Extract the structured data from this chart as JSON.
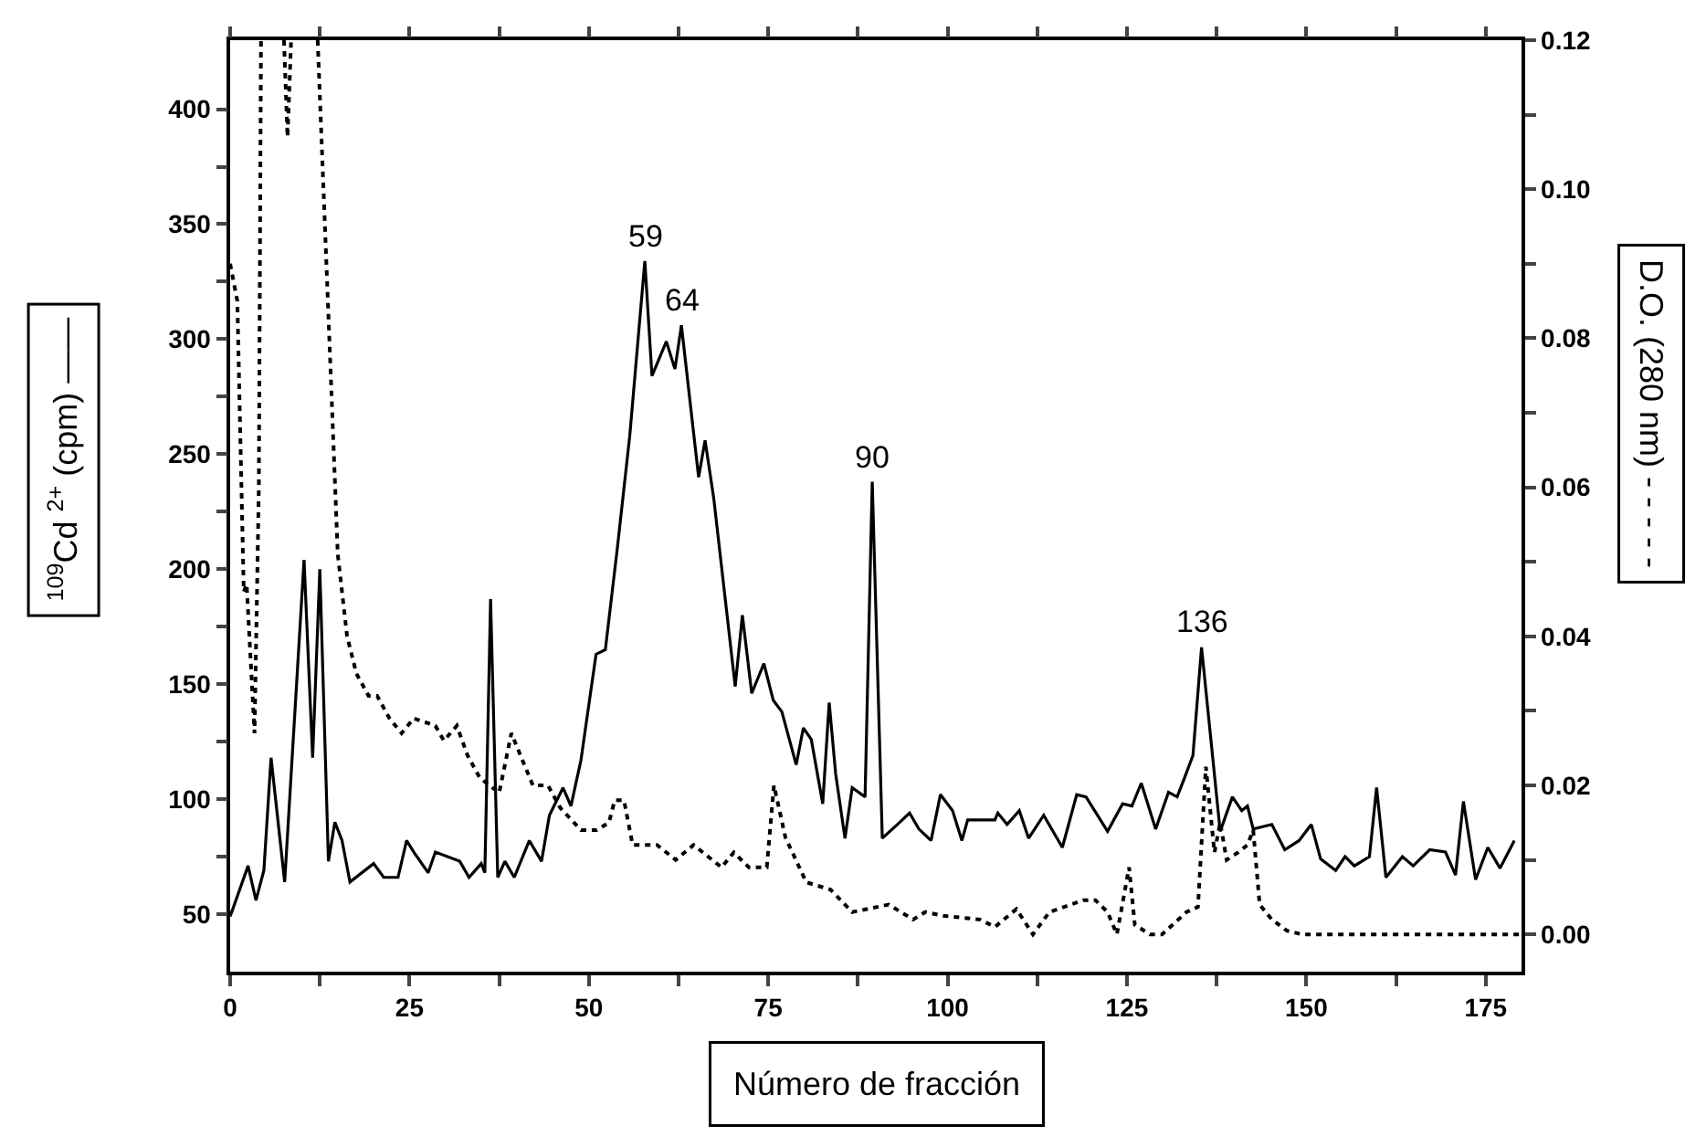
{
  "chart_data": {
    "type": "line",
    "xlabel": "Número de fracción",
    "ylabel": "$^{109}$Cd $^{2+}$ (cpm) ——",
    "y2label": "D.O. (280 nm) - - - - -",
    "xlim": [
      0,
      180
    ],
    "xticks": [
      0,
      {
        "value": 12.5,
        "label": null
      },
      25,
      {
        "value": 37.5,
        "label": null
      },
      50,
      {
        "value": 62.5,
        "label": null
      },
      75,
      {
        "value": 87.5,
        "label": null
      },
      100,
      {
        "value": 112.5,
        "label": null
      },
      125,
      {
        "value": 137.5,
        "label": null
      },
      150,
      {
        "value": 162.5,
        "label": null
      },
      175
    ],
    "ylim": [
      25,
      430
    ],
    "yticks": [
      50,
      {
        "value": 75,
        "label": null
      },
      100,
      {
        "value": 125,
        "label": null
      },
      150,
      {
        "value": 175,
        "label": null
      },
      200,
      {
        "value": 225,
        "label": null
      },
      250,
      {
        "value": 275,
        "label": null
      },
      300,
      {
        "value": 325,
        "label": null
      },
      350,
      {
        "value": 375,
        "label": null
      },
      400
    ],
    "y2lim": [
      -0.005,
      0.12
    ],
    "y2ticks": [
      {
        "value": 0,
        "label": "0.00"
      },
      {
        "value": 0.01,
        "label": null
      },
      {
        "value": 0.02,
        "label": "0.02"
      },
      {
        "value": 0.03,
        "label": null
      },
      {
        "value": 0.04,
        "label": "0.04"
      },
      {
        "value": 0.05,
        "label": null
      },
      {
        "value": 0.06,
        "label": "0.06"
      },
      {
        "value": 0.07,
        "label": null
      },
      {
        "value": 0.08,
        "label": "0.08"
      },
      {
        "value": 0.09,
        "label": null
      },
      {
        "value": 0.1,
        "label": "0.10"
      },
      {
        "value": 0.11,
        "label": null
      },
      {
        "value": 0.12,
        "label": "0.12"
      }
    ],
    "grid": false,
    "marker": "none",
    "annotations": [
      {
        "text": "59",
        "x": 57.8,
        "y": 334
      },
      {
        "text": "64",
        "x": 62.9,
        "y": 306
      },
      {
        "text": "90",
        "x": 89.5,
        "y": 238
      },
      {
        "text": "136",
        "x": 135.4,
        "y": 166
      }
    ],
    "series": [
      {
        "color": "#000000",
        "line_style": "solid",
        "x": [
          0,
          2.5,
          3.6,
          4.7,
          5.7,
          7.6,
          10.3,
          11.5,
          12.5,
          13.7,
          14.6,
          15.6,
          16.7,
          20,
          21.4,
          23.4,
          24.6,
          25.6,
          27.6,
          28.6,
          32,
          33.3,
          35,
          35.5,
          36.3,
          37.3,
          38.3,
          39.6,
          41.7,
          43.4,
          44.5,
          46.4,
          47.5,
          48.9,
          51,
          52.3,
          54,
          55.7,
          57.8,
          58.8,
          60.8,
          62,
          62.9,
          65.3,
          66.2,
          67.4,
          70.4,
          71.4,
          72.7,
          74.4,
          75.7,
          76.9,
          78.9,
          79.9,
          81,
          82.6,
          83.5,
          84.4,
          85.7,
          86.7,
          88.5,
          89.5,
          90.9,
          93,
          94.7,
          96,
          97.7,
          99,
          100.7,
          102,
          102.8,
          106.6,
          107,
          108.3,
          110,
          111.3,
          113.4,
          116,
          118,
          119.3,
          122.3,
          124.4,
          125.7,
          127,
          129,
          130.8,
          132,
          133,
          134.2,
          135.4,
          138,
          139.7,
          141,
          141.8,
          142.6,
          145.2,
          147,
          149,
          150.7,
          152,
          154.1,
          155.4,
          156.7,
          158.8,
          159.8,
          161.1,
          163.4,
          164.9,
          167.2,
          169.4,
          170.8,
          171.9,
          173.6,
          175.3,
          177,
          179
        ],
        "values": [
          49,
          71,
          56,
          69,
          118,
          64,
          204,
          118,
          200,
          73,
          90,
          82,
          64,
          72,
          66,
          66,
          82,
          77,
          68,
          77,
          73,
          66,
          72,
          68,
          187,
          66,
          73,
          66,
          82,
          73,
          93,
          105,
          97,
          117,
          163,
          165,
          210,
          258,
          334,
          284,
          299,
          287,
          306,
          240,
          256,
          231,
          149,
          180,
          146,
          159,
          143,
          138,
          115,
          131,
          126,
          98,
          142,
          111,
          83,
          105,
          101,
          238,
          83,
          89,
          94,
          87,
          82,
          102,
          95,
          82,
          91,
          91,
          94,
          89,
          95,
          83,
          93,
          79,
          102,
          101,
          86,
          98,
          97,
          107,
          87,
          103,
          101,
          109,
          119,
          166,
          86,
          101,
          95,
          97,
          87,
          89,
          78,
          82,
          89,
          74,
          69,
          75,
          71,
          75,
          105,
          66,
          75,
          71,
          78,
          77,
          67,
          99,
          65,
          79,
          70,
          82
        ]
      },
      {
        "color": "#000000",
        "line_style": "dotted",
        "axis": "y2",
        "x": [
          0,
          1,
          1.9,
          2.3,
          3.4,
          4,
          4.3,
          4.4,
          7.5,
          8,
          8.5,
          8.6,
          12.2,
          15,
          16.3,
          17.6,
          19.3,
          20.5,
          22.2,
          23.9,
          25.6,
          28.6,
          29.8,
          31.6,
          33.1,
          34.8,
          37.5,
          39.2,
          40.9,
          42.2,
          44.3,
          46,
          48.9,
          51.1,
          52.8,
          53.6,
          54.9,
          56.1,
          59.5,
          62.1,
          64.6,
          68.5,
          70.2,
          72.3,
          74.8,
          75.8,
          77.4,
          80.3,
          83.7,
          86.7,
          91.8,
          95.2,
          96.9,
          99.4,
          104.5,
          106.6,
          109.6,
          111.9,
          114.2,
          118.9,
          120.6,
          122.3,
          123.6,
          125.3,
          126.1,
          128.2,
          129.9,
          133.3,
          134.9,
          136,
          137.2,
          138,
          138.9,
          140.5,
          141.8,
          142.6,
          143.5,
          145.2,
          147.3,
          149.4,
          160,
          170,
          180
        ],
        "values": [
          0.09,
          0.085,
          0.046,
          0.047,
          0.027,
          0.06,
          0.12,
          null,
          0.12,
          0.107,
          0.12,
          null,
          0.12,
          0.051,
          0.04,
          0.035,
          0.032,
          0.032,
          0.029,
          0.027,
          0.029,
          0.028,
          0.026,
          0.028,
          0.024,
          0.021,
          0.019,
          0.027,
          0.023,
          0.02,
          0.02,
          0.017,
          0.014,
          0.014,
          0.015,
          0.018,
          0.018,
          0.012,
          0.012,
          0.01,
          0.012,
          0.009,
          0.011,
          0.009,
          0.009,
          0.02,
          0.013,
          0.007,
          0.006,
          0.003,
          0.004,
          0.002,
          0.003,
          0.0025,
          0.002,
          0.001,
          0.0034,
          0,
          0.003,
          0.0046,
          0.0046,
          0.003,
          0,
          0.009,
          0.0013,
          0,
          0,
          0.003,
          0.0037,
          0.0225,
          0.011,
          0.015,
          0.01,
          0.011,
          0.012,
          0.014,
          0.004,
          0.002,
          0.0005,
          0,
          0,
          0,
          0
        ]
      }
    ]
  }
}
